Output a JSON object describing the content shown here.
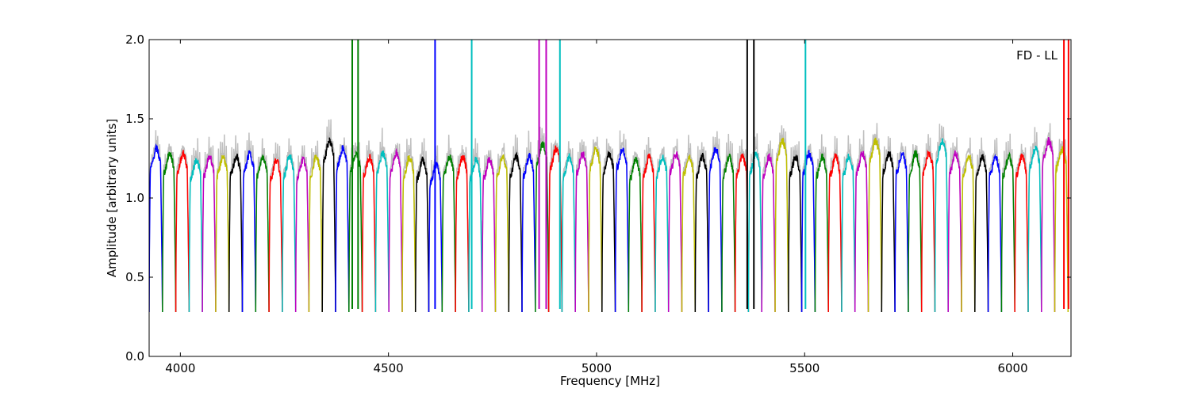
{
  "chart_data": {
    "type": "line",
    "title": "",
    "xlabel": "Frequency [MHz]",
    "ylabel": "Amplitude [arbitrary units]",
    "annotation": "FD - LL",
    "xlim": [
      3925,
      6140
    ],
    "ylim": [
      0.0,
      2.0
    ],
    "x_ticks": [
      4000,
      4500,
      5000,
      5500,
      6000
    ],
    "y_ticks": [
      0.0,
      0.5,
      1.0,
      1.5,
      2.0
    ],
    "x_tick_labels": [
      "4000",
      "4500",
      "5000",
      "5500",
      "6000"
    ],
    "y_tick_labels": [
      "0.0",
      "0.5",
      "1.0",
      "1.5",
      "2.0"
    ],
    "grid": false,
    "background_series": {
      "name": "",
      "color": "#bfbfbf"
    },
    "color_cycle": [
      "#0000ff",
      "#008000",
      "#ff0000",
      "#00bfbf",
      "#bf00bf",
      "#bfbf00",
      "#000000"
    ],
    "channel_width_mhz": 32,
    "channels": [
      {
        "start": 3925,
        "level": 1.25,
        "color": "#0000ff"
      },
      {
        "start": 3957,
        "level": 1.22,
        "color": "#008000"
      },
      {
        "start": 3989,
        "level": 1.22,
        "color": "#ff0000"
      },
      {
        "start": 4021,
        "level": 1.18,
        "color": "#00bfbf"
      },
      {
        "start": 4053,
        "level": 1.2,
        "color": "#bf00bf"
      },
      {
        "start": 4085,
        "level": 1.2,
        "color": "#bfbf00"
      },
      {
        "start": 4117,
        "level": 1.2,
        "color": "#000000"
      },
      {
        "start": 4149,
        "level": 1.22,
        "color": "#0000ff"
      },
      {
        "start": 4181,
        "level": 1.2,
        "color": "#008000"
      },
      {
        "start": 4213,
        "level": 1.18,
        "color": "#ff0000"
      },
      {
        "start": 4245,
        "level": 1.2,
        "color": "#00bfbf"
      },
      {
        "start": 4277,
        "level": 1.18,
        "color": "#bf00bf"
      },
      {
        "start": 4309,
        "level": 1.2,
        "color": "#bfbf00"
      },
      {
        "start": 4341,
        "level": 1.3,
        "color": "#000000"
      },
      {
        "start": 4373,
        "level": 1.25,
        "color": "#0000ff"
      },
      {
        "start": 4405,
        "level": 1.22,
        "color": "#008000"
      },
      {
        "start": 4437,
        "level": 1.2,
        "color": "#ff0000"
      },
      {
        "start": 4469,
        "level": 1.22,
        "color": "#00bfbf"
      },
      {
        "start": 4501,
        "level": 1.22,
        "color": "#bf00bf"
      },
      {
        "start": 4533,
        "level": 1.2,
        "color": "#bfbf00"
      },
      {
        "start": 4565,
        "level": 1.18,
        "color": "#000000"
      },
      {
        "start": 4597,
        "level": 1.15,
        "color": "#0000ff"
      },
      {
        "start": 4629,
        "level": 1.2,
        "color": "#008000"
      },
      {
        "start": 4661,
        "level": 1.2,
        "color": "#ff0000"
      },
      {
        "start": 4693,
        "level": 1.18,
        "color": "#00bfbf"
      },
      {
        "start": 4725,
        "level": 1.18,
        "color": "#bf00bf"
      },
      {
        "start": 4757,
        "level": 1.2,
        "color": "#bfbf00"
      },
      {
        "start": 4789,
        "level": 1.2,
        "color": "#000000"
      },
      {
        "start": 4821,
        "level": 1.2,
        "color": "#0000ff"
      },
      {
        "start": 4853,
        "level": 1.28,
        "color": "#008000"
      },
      {
        "start": 4885,
        "level": 1.25,
        "color": "#ff0000"
      },
      {
        "start": 4917,
        "level": 1.2,
        "color": "#00bfbf"
      },
      {
        "start": 4949,
        "level": 1.22,
        "color": "#bf00bf"
      },
      {
        "start": 4981,
        "level": 1.25,
        "color": "#bfbf00"
      },
      {
        "start": 5013,
        "level": 1.22,
        "color": "#000000"
      },
      {
        "start": 5045,
        "level": 1.25,
        "color": "#0000ff"
      },
      {
        "start": 5077,
        "level": 1.18,
        "color": "#008000"
      },
      {
        "start": 5109,
        "level": 1.2,
        "color": "#ff0000"
      },
      {
        "start": 5141,
        "level": 1.2,
        "color": "#00bfbf"
      },
      {
        "start": 5173,
        "level": 1.22,
        "color": "#bf00bf"
      },
      {
        "start": 5205,
        "level": 1.2,
        "color": "#bfbf00"
      },
      {
        "start": 5237,
        "level": 1.2,
        "color": "#000000"
      },
      {
        "start": 5269,
        "level": 1.25,
        "color": "#0000ff"
      },
      {
        "start": 5301,
        "level": 1.2,
        "color": "#008000"
      },
      {
        "start": 5333,
        "level": 1.2,
        "color": "#ff0000"
      },
      {
        "start": 5365,
        "level": 1.22,
        "color": "#00bfbf"
      },
      {
        "start": 5397,
        "level": 1.2,
        "color": "#bf00bf"
      },
      {
        "start": 5429,
        "level": 1.3,
        "color": "#bfbf00"
      },
      {
        "start": 5461,
        "level": 1.2,
        "color": "#000000"
      },
      {
        "start": 5493,
        "level": 1.22,
        "color": "#0000ff"
      },
      {
        "start": 5525,
        "level": 1.2,
        "color": "#008000"
      },
      {
        "start": 5557,
        "level": 1.2,
        "color": "#ff0000"
      },
      {
        "start": 5589,
        "level": 1.2,
        "color": "#00bfbf"
      },
      {
        "start": 5621,
        "level": 1.22,
        "color": "#bf00bf"
      },
      {
        "start": 5653,
        "level": 1.3,
        "color": "#bfbf00"
      },
      {
        "start": 5685,
        "level": 1.22,
        "color": "#000000"
      },
      {
        "start": 5717,
        "level": 1.22,
        "color": "#0000ff"
      },
      {
        "start": 5749,
        "level": 1.22,
        "color": "#008000"
      },
      {
        "start": 5781,
        "level": 1.22,
        "color": "#ff0000"
      },
      {
        "start": 5813,
        "level": 1.3,
        "color": "#00bfbf"
      },
      {
        "start": 5845,
        "level": 1.22,
        "color": "#bf00bf"
      },
      {
        "start": 5877,
        "level": 1.2,
        "color": "#bfbf00"
      },
      {
        "start": 5909,
        "level": 1.2,
        "color": "#000000"
      },
      {
        "start": 5941,
        "level": 1.2,
        "color": "#0000ff"
      },
      {
        "start": 5973,
        "level": 1.2,
        "color": "#008000"
      },
      {
        "start": 6005,
        "level": 1.2,
        "color": "#ff0000"
      },
      {
        "start": 6037,
        "level": 1.25,
        "color": "#00bfbf"
      },
      {
        "start": 6069,
        "level": 1.3,
        "color": "#bf00bf"
      },
      {
        "start": 6101,
        "level": 1.25,
        "color": "#bfbf00"
      }
    ],
    "spikes": [
      {
        "x": 4413,
        "y": 2.0,
        "color": "#008000"
      },
      {
        "x": 4427,
        "y": 2.0,
        "color": "#008000"
      },
      {
        "x": 4612,
        "y": 2.0,
        "color": "#0000ff"
      },
      {
        "x": 4700,
        "y": 2.0,
        "color": "#00bfbf"
      },
      {
        "x": 4862,
        "y": 2.0,
        "color": "#bf00bf"
      },
      {
        "x": 4879,
        "y": 2.0,
        "color": "#bf00bf"
      },
      {
        "x": 4912,
        "y": 2.0,
        "color": "#00bfbf"
      },
      {
        "x": 5362,
        "y": 2.0,
        "color": "#000000"
      },
      {
        "x": 5378,
        "y": 2.0,
        "color": "#000000"
      },
      {
        "x": 5502,
        "y": 2.0,
        "color": "#00bfbf"
      },
      {
        "x": 6123,
        "y": 2.0,
        "color": "#ff0000"
      },
      {
        "x": 6134,
        "y": 2.0,
        "color": "#ff0000"
      }
    ]
  }
}
